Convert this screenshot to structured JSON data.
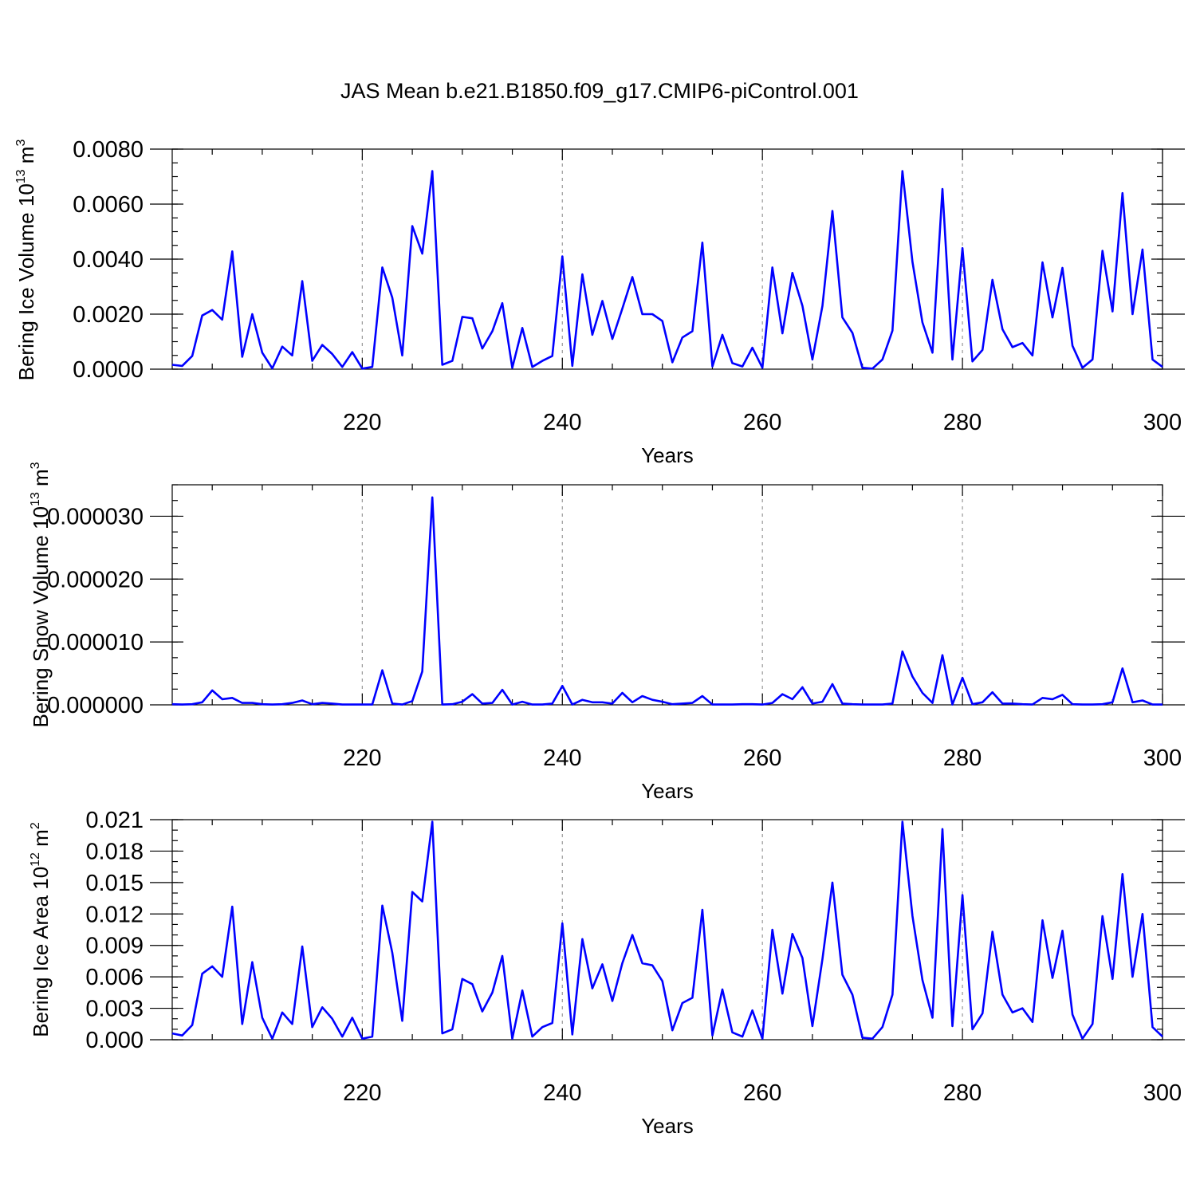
{
  "title": "JAS Mean b.e21.B1850.f09_g17.CMIP6-piControl.001",
  "chart_data": [
    {
      "type": "line",
      "xlabel": "Years",
      "ylabel": {
        "text": "Bering Ice Volume 10",
        "sup1": "13",
        "unit": " m",
        "sup2": "3"
      },
      "xlim": [
        201,
        300
      ],
      "ylim": [
        0,
        0.008
      ],
      "x_ticks": [
        220,
        240,
        260,
        280,
        300
      ],
      "y_ticks": [
        "0.0000",
        "0.0020",
        "0.0040",
        "0.0060",
        "0.0080"
      ],
      "grid_x": [
        220,
        240,
        260,
        280
      ],
      "x": [
        201,
        202,
        203,
        204,
        205,
        206,
        207,
        208,
        209,
        210,
        211,
        212,
        213,
        214,
        215,
        216,
        217,
        218,
        219,
        220,
        221,
        222,
        223,
        224,
        225,
        226,
        227,
        228,
        229,
        230,
        231,
        232,
        233,
        234,
        235,
        236,
        237,
        238,
        239,
        240,
        241,
        242,
        243,
        244,
        245,
        246,
        247,
        248,
        249,
        250,
        251,
        252,
        253,
        254,
        255,
        256,
        257,
        258,
        259,
        260,
        261,
        262,
        263,
        264,
        265,
        266,
        267,
        268,
        269,
        270,
        271,
        272,
        273,
        274,
        275,
        276,
        277,
        278,
        279,
        280,
        281,
        282,
        283,
        284,
        285,
        286,
        287,
        288,
        289,
        290,
        291,
        292,
        293,
        294,
        295,
        296,
        297,
        298,
        299,
        300
      ],
      "values": [
        0.00016,
        0.00012,
        0.00048,
        0.00195,
        0.00215,
        0.0018,
        0.00428,
        0.00045,
        0.002,
        0.0006,
        3e-05,
        0.00082,
        0.0005,
        0.0032,
        0.0003,
        0.00088,
        0.00055,
        8e-05,
        0.00062,
        2e-05,
        8e-05,
        0.0037,
        0.0026,
        0.0005,
        0.0052,
        0.0042,
        0.0072,
        0.00016,
        0.0003,
        0.0019,
        0.00185,
        0.00075,
        0.00138,
        0.0024,
        5e-05,
        0.0015,
        8e-05,
        0.0003,
        0.00048,
        0.0041,
        0.00012,
        0.00345,
        0.00125,
        0.00248,
        0.0011,
        0.0022,
        0.00335,
        0.002,
        0.002,
        0.00175,
        0.00025,
        0.00115,
        0.00138,
        0.0046,
        0.0001,
        0.00125,
        0.00022,
        0.0001,
        0.00078,
        5e-05,
        0.0037,
        0.0013,
        0.0035,
        0.0023,
        0.00035,
        0.0023,
        0.00575,
        0.00188,
        0.00132,
        5e-05,
        2e-05,
        0.00035,
        0.0014,
        0.0072,
        0.0039,
        0.0017,
        0.0006,
        0.00655,
        0.00035,
        0.0044,
        0.00028,
        0.0007,
        0.00325,
        0.00145,
        0.0008,
        0.00095,
        0.0005,
        0.00388,
        0.00188,
        0.00368,
        0.00085,
        5e-05,
        0.00035,
        0.0043,
        0.0021,
        0.0064,
        0.002,
        0.00435,
        0.00035,
        8e-05
      ]
    },
    {
      "type": "line",
      "xlabel": "Years",
      "ylabel": {
        "text": "Bering Snow Volume 10",
        "sup1": "13",
        "unit": " m",
        "sup2": "3"
      },
      "xlim": [
        201,
        300
      ],
      "ylim": [
        0,
        3.5e-05
      ],
      "x_ticks": [
        220,
        240,
        260,
        280,
        300
      ],
      "y_ticks": [
        "0.000000",
        "0.000010",
        "0.000020",
        "0.000030"
      ],
      "y_tick_values": [
        0,
        1e-05,
        2e-05,
        3e-05
      ],
      "grid_x": [
        220,
        240,
        260,
        280
      ],
      "x": [
        201,
        202,
        203,
        204,
        205,
        206,
        207,
        208,
        209,
        210,
        211,
        212,
        213,
        214,
        215,
        216,
        217,
        218,
        219,
        220,
        221,
        222,
        223,
        224,
        225,
        226,
        227,
        228,
        229,
        230,
        231,
        232,
        233,
        234,
        235,
        236,
        237,
        238,
        239,
        240,
        241,
        242,
        243,
        244,
        245,
        246,
        247,
        248,
        249,
        250,
        251,
        252,
        253,
        254,
        255,
        256,
        257,
        258,
        259,
        260,
        261,
        262,
        263,
        264,
        265,
        266,
        267,
        268,
        269,
        270,
        271,
        272,
        273,
        274,
        275,
        276,
        277,
        278,
        279,
        280,
        281,
        282,
        283,
        284,
        285,
        286,
        287,
        288,
        289,
        290,
        291,
        292,
        293,
        294,
        295,
        296,
        297,
        298,
        299,
        300
      ],
      "values": [
        1e-07,
        5e-08,
        1e-07,
        4e-07,
        2.3e-06,
        9e-07,
        1.1e-06,
        3e-07,
        3e-07,
        1e-07,
        5e-08,
        1e-07,
        3e-07,
        7e-07,
        1e-07,
        3e-07,
        2e-07,
        5e-08,
        5e-08,
        5e-08,
        5e-08,
        5.5e-06,
        2e-07,
        5e-08,
        6e-07,
        5.3e-06,
        3.3e-05,
        5e-08,
        1e-07,
        5e-07,
        1.7e-06,
        2e-07,
        3e-07,
        2.4e-06,
        5e-08,
        5e-07,
        5e-08,
        5e-08,
        2e-07,
        3e-06,
        5e-08,
        8e-07,
        4e-07,
        4e-07,
        2e-07,
        1.9e-06,
        4e-07,
        1.4e-06,
        8e-07,
        5e-07,
        1e-07,
        2e-07,
        3e-07,
        1.4e-06,
        5e-08,
        5e-08,
        5e-08,
        1e-07,
        1e-07,
        5e-08,
        3e-07,
        1.7e-06,
        9e-07,
        2.8e-06,
        2e-07,
        5e-07,
        3.3e-06,
        2e-07,
        1e-07,
        5e-08,
        5e-08,
        5e-08,
        2e-07,
        8.5e-06,
        4.5e-06,
        1.9e-06,
        3e-07,
        7.9e-06,
        5e-08,
        4.3e-06,
        1e-07,
        4e-07,
        2e-06,
        2e-07,
        2e-07,
        1e-07,
        5e-08,
        1.1e-06,
        9e-07,
        1.6e-06,
        1e-07,
        5e-08,
        5e-08,
        1e-07,
        4e-07,
        5.8e-06,
        4e-07,
        7e-07,
        5e-08,
        5e-08
      ]
    },
    {
      "type": "line",
      "xlabel": "Years",
      "ylabel": {
        "text": "Bering Ice Area 10",
        "sup1": "12",
        "unit": " m",
        "sup2": "2"
      },
      "xlim": [
        201,
        300
      ],
      "ylim": [
        0,
        0.021
      ],
      "x_ticks": [
        220,
        240,
        260,
        280,
        300
      ],
      "y_ticks": [
        "0.000",
        "0.003",
        "0.006",
        "0.009",
        "0.012",
        "0.015",
        "0.018",
        "0.021"
      ],
      "grid_x": [
        220,
        240,
        260,
        280
      ],
      "x": [
        201,
        202,
        203,
        204,
        205,
        206,
        207,
        208,
        209,
        210,
        211,
        212,
        213,
        214,
        215,
        216,
        217,
        218,
        219,
        220,
        221,
        222,
        223,
        224,
        225,
        226,
        227,
        228,
        229,
        230,
        231,
        232,
        233,
        234,
        235,
        236,
        237,
        238,
        239,
        240,
        241,
        242,
        243,
        244,
        245,
        246,
        247,
        248,
        249,
        250,
        251,
        252,
        253,
        254,
        255,
        256,
        257,
        258,
        259,
        260,
        261,
        262,
        263,
        264,
        265,
        266,
        267,
        268,
        269,
        270,
        271,
        272,
        273,
        274,
        275,
        276,
        277,
        278,
        279,
        280,
        281,
        282,
        283,
        284,
        285,
        286,
        287,
        288,
        289,
        290,
        291,
        292,
        293,
        294,
        295,
        296,
        297,
        298,
        299,
        300
      ],
      "values": [
        0.0006,
        0.0004,
        0.0014,
        0.0063,
        0.007,
        0.006,
        0.0127,
        0.0015,
        0.0074,
        0.0021,
        0.0001,
        0.0026,
        0.0015,
        0.0089,
        0.0012,
        0.0031,
        0.002,
        0.0003,
        0.0021,
        0.0001,
        0.0003,
        0.0128,
        0.0083,
        0.0018,
        0.0141,
        0.0132,
        0.0208,
        0.0006,
        0.001,
        0.0058,
        0.0053,
        0.0027,
        0.0045,
        0.008,
        0.0001,
        0.0047,
        0.0003,
        0.0012,
        0.0016,
        0.0111,
        0.0005,
        0.0096,
        0.0049,
        0.0072,
        0.0037,
        0.0073,
        0.01,
        0.0073,
        0.0071,
        0.0056,
        0.0009,
        0.0035,
        0.004,
        0.0124,
        0.0004,
        0.0048,
        0.0007,
        0.0003,
        0.0028,
        0.0001,
        0.0105,
        0.0044,
        0.0101,
        0.0078,
        0.0013,
        0.0077,
        0.015,
        0.0062,
        0.0043,
        0.0002,
        0.0001,
        0.0012,
        0.0043,
        0.0208,
        0.0118,
        0.0057,
        0.0021,
        0.0201,
        0.0013,
        0.0138,
        0.001,
        0.0025,
        0.0103,
        0.0043,
        0.0026,
        0.003,
        0.0017,
        0.0114,
        0.0059,
        0.0104,
        0.0024,
        0.0001,
        0.0015,
        0.0118,
        0.0058,
        0.0158,
        0.006,
        0.012,
        0.0012,
        0.0003
      ]
    }
  ]
}
